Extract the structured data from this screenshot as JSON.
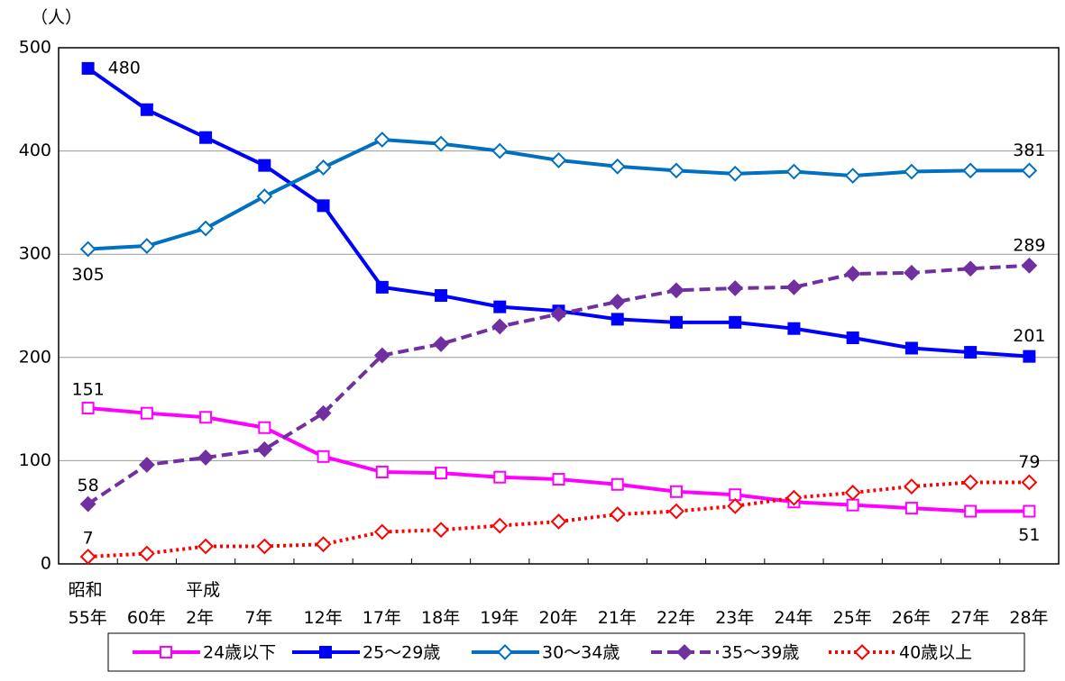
{
  "chart_data": {
    "type": "line",
    "y_label": "（人）",
    "categories": [
      "昭和\n55年",
      "60年",
      "平成\n2年",
      "7年",
      "12年",
      "17年",
      "18年",
      "19年",
      "20年",
      "21年",
      "22年",
      "23年",
      "24年",
      "25年",
      "26年",
      "27年",
      "28年"
    ],
    "ylim": [
      0,
      500
    ],
    "yticks": [
      0,
      100,
      200,
      300,
      400,
      500
    ],
    "grid": true,
    "legend": "bottom",
    "series": [
      {
        "name": "24歳以下",
        "color": "#ff00ff",
        "marker": "square",
        "filled": false,
        "dash": "solid",
        "values": [
          151,
          146,
          142,
          132,
          104,
          89,
          88,
          84,
          82,
          77,
          70,
          67,
          60,
          57,
          54,
          51,
          51
        ]
      },
      {
        "name": "25～29歳",
        "color": "#0000ff",
        "marker": "square",
        "filled": true,
        "dash": "solid",
        "values": [
          480,
          440,
          413,
          386,
          347,
          268,
          260,
          249,
          245,
          237,
          234,
          234,
          228,
          219,
          209,
          205,
          201
        ]
      },
      {
        "name": "30～34歳",
        "color": "#0070c0",
        "marker": "diamond",
        "filled": false,
        "dash": "solid",
        "values": [
          305,
          308,
          325,
          356,
          384,
          411,
          407,
          400,
          391,
          385,
          381,
          378,
          380,
          376,
          380,
          381,
          381
        ]
      },
      {
        "name": "35～39歳",
        "color": "#7030a0",
        "marker": "diamond",
        "filled": true,
        "dash": "dashed",
        "values": [
          58,
          96,
          103,
          111,
          146,
          202,
          213,
          230,
          242,
          254,
          265,
          267,
          268,
          281,
          282,
          286,
          289
        ]
      },
      {
        "name": "40歳以上",
        "color": "#ff0000",
        "marker": "diamond",
        "filled": false,
        "dash": "dotted",
        "values": [
          7,
          10,
          17,
          17,
          19,
          31,
          33,
          37,
          41,
          48,
          51,
          56,
          64,
          69,
          75,
          79,
          79
        ]
      }
    ]
  }
}
